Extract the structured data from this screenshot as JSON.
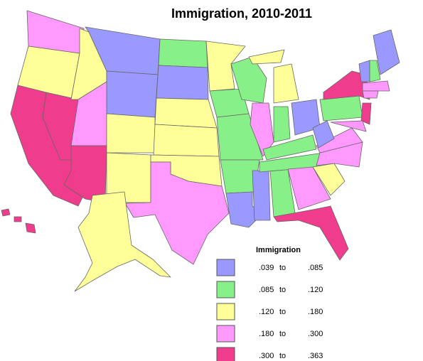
{
  "title": "Immigration, 2010-2011",
  "legend": {
    "title": "Immigration",
    "separator": "to",
    "classes": [
      {
        "from": {
          "value": 0.039,
          "label": ".039"
        },
        "to": {
          "value": 0.085,
          "label": ".085"
        },
        "color": "#9999ff"
      },
      {
        "from": {
          "value": 0.085,
          "label": ".085"
        },
        "to": {
          "value": 0.12,
          "label": ".120"
        },
        "color": "#88f088"
      },
      {
        "from": {
          "value": 0.12,
          "label": ".120"
        },
        "to": {
          "value": 0.18,
          "label": ".180"
        },
        "color": "#ffff99"
      },
      {
        "from": {
          "value": 0.18,
          "label": ".180"
        },
        "to": {
          "value": 0.3,
          "label": ".300"
        },
        "color": "#ff99ff"
      },
      {
        "from": {
          "value": 0.3,
          "label": ".300"
        },
        "to": {
          "value": 0.363,
          "label": ".363"
        },
        "color": "#f03c8c"
      }
    ]
  }
}
